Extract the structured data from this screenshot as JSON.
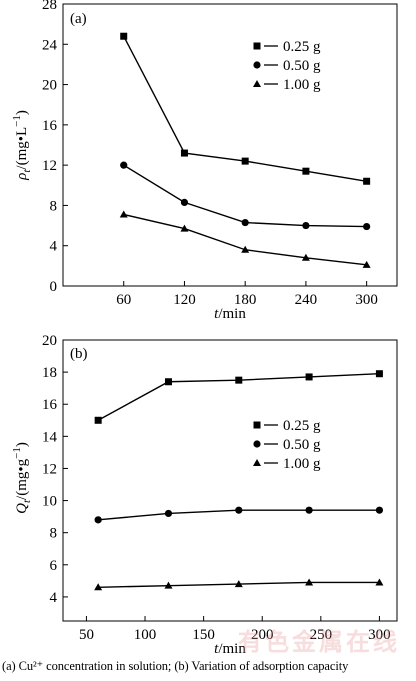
{
  "chart_data": [
    {
      "type": "line",
      "panel_label": "(a)",
      "xlabel_var": "t",
      "xlabel_unit": "/min",
      "ylabel_var": "ρ",
      "ylabel_sub": "t",
      "ylabel_unit": "/(mg•L",
      "ylabel_sup": "−1",
      "ylabel_close": ")",
      "x_ticks": [
        60,
        120,
        180,
        240,
        300
      ],
      "y_ticks": [
        0,
        4,
        8,
        12,
        16,
        20,
        24,
        28
      ],
      "xlim": [
        0,
        330
      ],
      "ylim": [
        0,
        28
      ],
      "grid": false,
      "legend_position": "top-right",
      "series": [
        {
          "name": "0.25 g",
          "marker": "square",
          "x": [
            60,
            120,
            180,
            240,
            300
          ],
          "y": [
            24.8,
            13.2,
            12.4,
            11.4,
            10.4
          ]
        },
        {
          "name": "0.50 g",
          "marker": "circle",
          "x": [
            60,
            120,
            180,
            240,
            300
          ],
          "y": [
            12.0,
            8.3,
            6.3,
            6.0,
            5.9
          ]
        },
        {
          "name": "1.00 g",
          "marker": "triangle",
          "x": [
            60,
            120,
            180,
            240,
            300
          ],
          "y": [
            7.1,
            5.7,
            3.6,
            2.8,
            2.1
          ]
        }
      ]
    },
    {
      "type": "line",
      "panel_label": "(b)",
      "xlabel_var": "t",
      "xlabel_unit": "/min",
      "ylabel_var": "Q",
      "ylabel_sub": "t",
      "ylabel_unit": "/(mg•g",
      "ylabel_sup": "−1",
      "ylabel_close": ")",
      "x_ticks": [
        50,
        100,
        150,
        200,
        250,
        300
      ],
      "y_ticks": [
        4,
        6,
        8,
        10,
        12,
        14,
        16,
        18,
        20
      ],
      "xlim": [
        30,
        315
      ],
      "ylim": [
        2.5,
        20
      ],
      "grid": false,
      "legend_position": "middle-right",
      "series": [
        {
          "name": "0.25 g",
          "marker": "square",
          "x": [
            60,
            120,
            180,
            240,
            300
          ],
          "y": [
            15.0,
            17.4,
            17.5,
            17.7,
            17.9
          ]
        },
        {
          "name": "0.50 g",
          "marker": "circle",
          "x": [
            60,
            120,
            180,
            240,
            300
          ],
          "y": [
            8.8,
            9.2,
            9.4,
            9.4,
            9.4
          ]
        },
        {
          "name": "1.00 g",
          "marker": "triangle",
          "x": [
            60,
            120,
            180,
            240,
            300
          ],
          "y": [
            4.6,
            4.7,
            4.8,
            4.9,
            4.9
          ]
        }
      ]
    }
  ],
  "caption": "(a) Cu²⁺ concentration in solution; (b) Variation of adsorption capacity",
  "watermark": "有色金属在线"
}
